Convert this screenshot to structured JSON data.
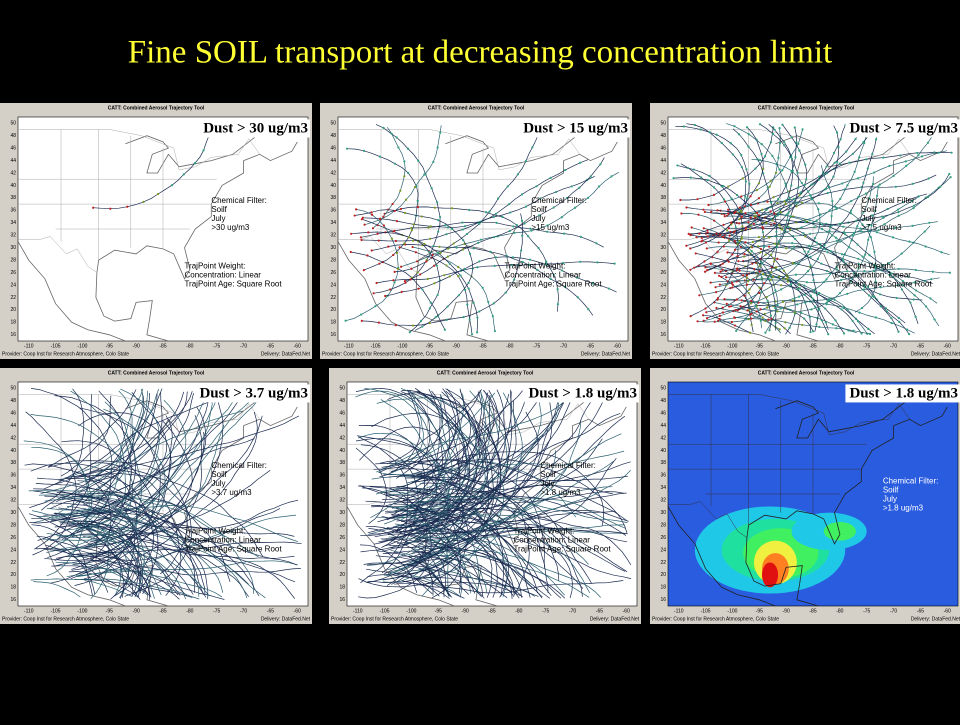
{
  "title": "Fine SOIL transport at decreasing concentration limit",
  "tool_title": "CATT: Combined Aerosol Trajectory Tool",
  "provider": "Provider: Coop Inst for Research Atmosphere, Colo State",
  "delivery": "Delivery: DataFed.Net",
  "x_ticks": [
    -110,
    -105,
    -100,
    -95,
    -90,
    -85,
    -80,
    -75,
    -70,
    -65,
    -60
  ],
  "y_ticks": [
    50,
    48,
    46,
    44,
    42,
    40,
    38,
    36,
    34,
    32,
    30,
    28,
    26,
    24,
    22,
    20,
    18,
    16
  ],
  "panels": [
    {
      "label": "Dust > 30 ug/m3",
      "filter": [
        "Chemical Filter:",
        "Soilf",
        "July",
        ">30 ug/m3"
      ],
      "weight": [
        "TrajPoint Weight:",
        "Concentration: Linear",
        "TrajPoint Age: Square Root"
      ]
    },
    {
      "label": "Dust > 15 ug/m3",
      "filter": [
        "Chemical Filter:",
        "Soilf",
        "July",
        ">15 ug/m3"
      ],
      "weight": [
        "TrajPoint Weight:",
        "Concentration: Linear",
        "TrajPoint Age: Square Root"
      ]
    },
    {
      "label": "Dust > 7.5 ug/m3",
      "filter": [
        "Chemical Filter:",
        "Soilf",
        "July",
        ">7.5 ug/m3"
      ],
      "weight": [
        "TrajPoint Weight:",
        "Concentration: Linear",
        "TrajPoint Age: Square Root"
      ]
    },
    {
      "label": "Dust > 3.7 ug/m3",
      "filter": [
        "Chemical Filter:",
        "Soilf",
        "July",
        ">3.7 ug/m3"
      ],
      "weight": [
        "TrajPoint Weight:",
        "Concentration: Linear",
        "TrajPoint Age: Square Root"
      ]
    },
    {
      "label": "Dust > 1.8 ug/m3",
      "filter": [
        "Chemical Filter:",
        "Soilf",
        "July",
        ">1.8 ug/m3"
      ],
      "weight": [
        "TrajPoint Weight:",
        "Concentration: Linear",
        "TrajPoint Age: Square Root"
      ]
    },
    {
      "label": "Dust > 1.8 ug/m3",
      "filter": [
        "Chemical Filter:",
        "Soilf",
        "July",
        ">1.8 ug/m3"
      ]
    }
  ]
}
